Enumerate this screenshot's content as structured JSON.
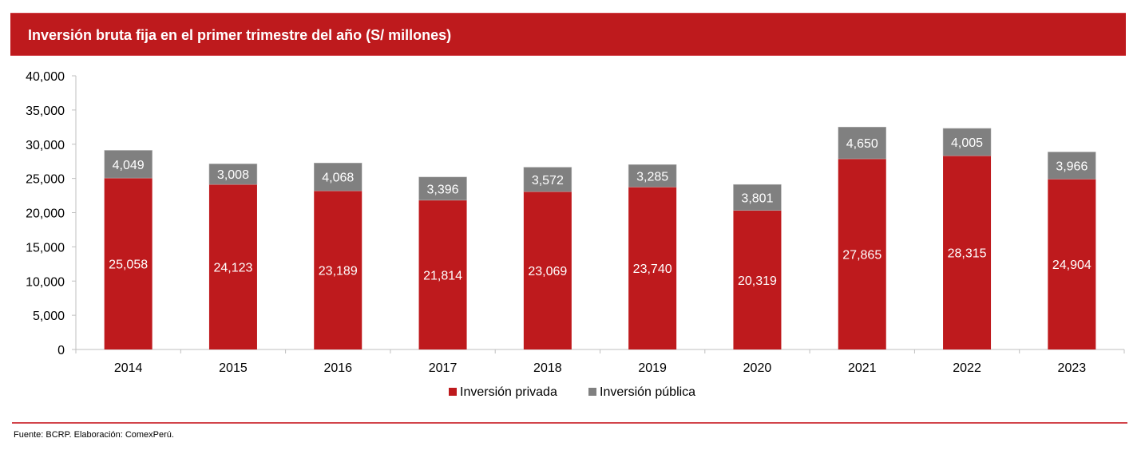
{
  "header": {
    "title": "Inversión bruta fija en el primer trimestre del año (S/ millones)"
  },
  "footer": {
    "source": "Fuente: BCRP. Elaboración: ComexPerú."
  },
  "colors": {
    "brand": "#be1a1d",
    "privada": "#be1a1d",
    "publica": "#808080"
  },
  "chart_data": {
    "type": "bar",
    "stacked": true,
    "title": "Inversión bruta fija en el primer trimestre del año (S/ millones)",
    "xlabel": "",
    "ylabel": "",
    "categories": [
      "2014",
      "2015",
      "2016",
      "2017",
      "2018",
      "2019",
      "2020",
      "2021",
      "2022",
      "2023"
    ],
    "series": [
      {
        "name": "Inversión privada",
        "color": "#be1a1d",
        "values": [
          25058,
          24123,
          23189,
          21814,
          23069,
          23740,
          20319,
          27865,
          28315,
          24904
        ],
        "labels": [
          "25,058",
          "24,123",
          "23,189",
          "21,814",
          "23,069",
          "23,740",
          "20,319",
          "27,865",
          "28,315",
          "24,904"
        ]
      },
      {
        "name": "Inversión pública",
        "color": "#808080",
        "values": [
          4049,
          3008,
          4068,
          3396,
          3572,
          3285,
          3801,
          4650,
          4005,
          3966
        ],
        "labels": [
          "4,049",
          "3,008",
          "4,068",
          "3,396",
          "3,572",
          "3,285",
          "3,801",
          "4,650",
          "4,005",
          "3,966"
        ]
      }
    ],
    "ylim": [
      0,
      40000
    ],
    "yticks": [
      0,
      5000,
      10000,
      15000,
      20000,
      25000,
      30000,
      35000,
      40000
    ],
    "ytick_labels": [
      "0",
      "5,000",
      "10,000",
      "15,000",
      "20,000",
      "25,000",
      "30,000",
      "35,000",
      "40,000"
    ],
    "grid": false,
    "legend": "bottom-center"
  }
}
